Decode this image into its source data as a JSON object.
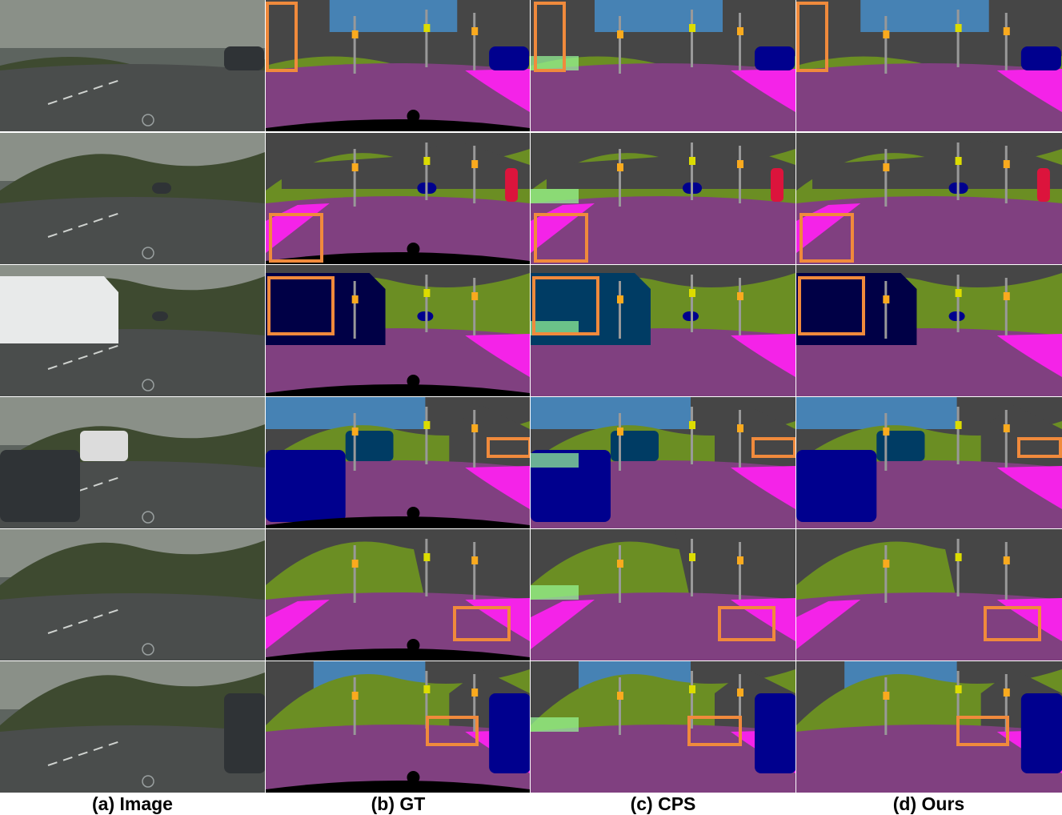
{
  "columns": [
    {
      "id": "image",
      "caption": "(a) Image"
    },
    {
      "id": "gt",
      "caption": "(b) GT"
    },
    {
      "id": "cps",
      "caption": "(c) CPS"
    },
    {
      "id": "ours",
      "caption": "(d) Ours"
    }
  ],
  "palette": {
    "road": "#804080",
    "sidewalk": "#f423e8",
    "building": "#464646",
    "vegetation": "#6b8e23",
    "sky": "#4682b4",
    "car": "#00008e",
    "truck": "#000046",
    "bus": "#003c64",
    "person": "#dc143c",
    "rider": "#ff0000",
    "pole": "#999999",
    "traffic_light": "#faaa1e",
    "traffic_sign": "#dcdc00",
    "fence": "#be9999",
    "wall": "#66669c",
    "terrain": "#98fb98",
    "void": "#000000",
    "highlight_box": "#f08a3c"
  },
  "rows": 6
}
